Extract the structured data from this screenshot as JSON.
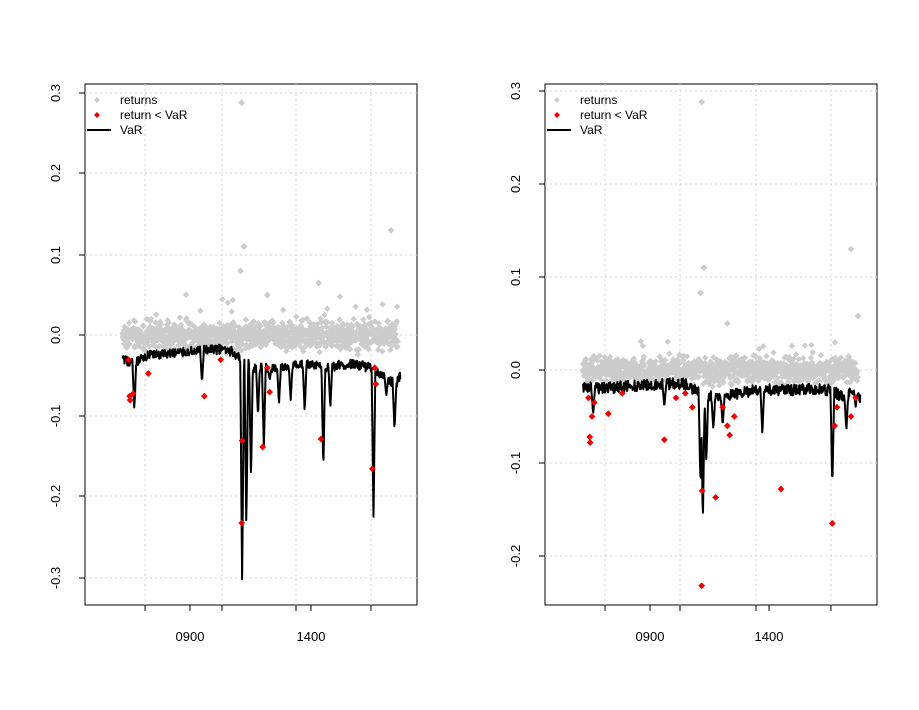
{
  "colors": {
    "returns": "#cccccc",
    "exceed": "#ee0000",
    "var_line": "#000000",
    "grid": "#d3d3d3",
    "axis": "#000000"
  },
  "chart_data": [
    {
      "type": "scatter",
      "title": "",
      "xlabel": "",
      "ylabel": "",
      "grid": true,
      "legend_position": "top-left",
      "legend": [
        "returns",
        "return < VaR",
        "VaR"
      ],
      "x_ticks": [
        "0900",
        "1400"
      ],
      "y_ticks": [
        "-0.3",
        "-0.2",
        "-0.1",
        "0.0",
        "0.1",
        "0.2",
        "0.3"
      ],
      "ylim": [
        -0.335,
        0.305
      ],
      "series": [
        {
          "name": "returns",
          "kind": "points",
          "approx_n": 1000,
          "approx_range": [
            -0.04,
            0.06
          ],
          "outliers": [
            [
              1040,
              0.288
            ],
            [
              1050,
              0.11
            ],
            [
              1035,
              0.08
            ],
            [
              1370,
              0.065
            ],
            [
              1680,
              0.13
            ],
            [
              1150,
              0.05
            ]
          ]
        },
        {
          "name": "return < VaR",
          "kind": "points",
          "values": [
            [
              555,
              -0.03
            ],
            [
              560,
              -0.075
            ],
            [
              562,
              -0.08
            ],
            [
              575,
              -0.072
            ],
            [
              640,
              -0.047
            ],
            [
              880,
              -0.075
            ],
            [
              950,
              -0.03
            ],
            [
              1040,
              -0.232
            ],
            [
              1042,
              -0.13
            ],
            [
              1130,
              -0.138
            ],
            [
              1150,
              -0.04
            ],
            [
              1160,
              -0.07
            ],
            [
              1380,
              -0.128
            ],
            [
              1600,
              -0.165
            ],
            [
              1610,
              -0.04
            ],
            [
              1615,
              -0.06
            ]
          ]
        },
        {
          "name": "VaR",
          "kind": "line",
          "baseline": [
            [
              530,
              -0.03
            ],
            [
              580,
              -0.035
            ],
            [
              640,
              -0.025
            ],
            [
              800,
              -0.02
            ],
            [
              900,
              -0.018
            ],
            [
              960,
              -0.017
            ],
            [
              1000,
              -0.02
            ],
            [
              1020,
              -0.025
            ],
            [
              1100,
              -0.04
            ],
            [
              1200,
              -0.04
            ],
            [
              1300,
              -0.035
            ],
            [
              1400,
              -0.04
            ],
            [
              1500,
              -0.035
            ],
            [
              1600,
              -0.04
            ],
            [
              1700,
              -0.06
            ],
            [
              1720,
              -0.05
            ]
          ],
          "spikes": [
            [
              580,
              -0.092
            ],
            [
              870,
              -0.058
            ],
            [
              1042,
              -0.312
            ],
            [
              1060,
              -0.24
            ],
            [
              1080,
              -0.18
            ],
            [
              1110,
              -0.1
            ],
            [
              1135,
              -0.14
            ],
            [
              1160,
              -0.055
            ],
            [
              1200,
              -0.085
            ],
            [
              1250,
              -0.08
            ],
            [
              1310,
              -0.095
            ],
            [
              1390,
              -0.166
            ],
            [
              1420,
              -0.09
            ],
            [
              1605,
              -0.225
            ],
            [
              1660,
              -0.075
            ],
            [
              1695,
              -0.118
            ]
          ]
        }
      ]
    },
    {
      "type": "scatter",
      "title": "",
      "xlabel": "",
      "ylabel": "",
      "grid": true,
      "legend_position": "top-left",
      "legend": [
        "returns",
        "return < VaR",
        "VaR"
      ],
      "x_ticks": [
        "0900",
        "1400"
      ],
      "y_ticks": [
        "-0.2",
        "-0.1",
        "0.0",
        "0.1",
        "0.2",
        "0.3"
      ],
      "ylim": [
        -0.255,
        0.31
      ],
      "series": [
        {
          "name": "returns",
          "kind": "points",
          "approx_n": 1000,
          "approx_range": [
            -0.02,
            0.05
          ],
          "outliers": [
            [
              1040,
              0.288
            ],
            [
              1050,
              0.11
            ],
            [
              1035,
              0.083
            ],
            [
              1150,
              0.05
            ],
            [
              1680,
              0.13
            ],
            [
              1710,
              0.058
            ]
          ]
        },
        {
          "name": "return < VaR",
          "kind": "points",
          "values": [
            [
              555,
              -0.03
            ],
            [
              560,
              -0.072
            ],
            [
              562,
              -0.078
            ],
            [
              570,
              -0.05
            ],
            [
              580,
              -0.035
            ],
            [
              640,
              -0.047
            ],
            [
              700,
              -0.025
            ],
            [
              880,
              -0.075
            ],
            [
              930,
              -0.03
            ],
            [
              970,
              -0.025
            ],
            [
              1000,
              -0.04
            ],
            [
              1040,
              -0.232
            ],
            [
              1042,
              -0.13
            ],
            [
              1100,
              -0.137
            ],
            [
              1130,
              -0.04
            ],
            [
              1150,
              -0.06
            ],
            [
              1160,
              -0.07
            ],
            [
              1180,
              -0.05
            ],
            [
              1380,
              -0.128
            ],
            [
              1600,
              -0.165
            ],
            [
              1610,
              -0.06
            ],
            [
              1620,
              -0.04
            ],
            [
              1680,
              -0.05
            ],
            [
              1700,
              -0.03
            ]
          ]
        },
        {
          "name": "VaR",
          "kind": "line",
          "baseline": [
            [
              530,
              -0.018
            ],
            [
              600,
              -0.02
            ],
            [
              700,
              -0.018
            ],
            [
              800,
              -0.016
            ],
            [
              900,
              -0.015
            ],
            [
              960,
              -0.014
            ],
            [
              1000,
              -0.02
            ],
            [
              1030,
              -0.025
            ],
            [
              1100,
              -0.03
            ],
            [
              1200,
              -0.025
            ],
            [
              1300,
              -0.02
            ],
            [
              1400,
              -0.022
            ],
            [
              1500,
              -0.02
            ],
            [
              1600,
              -0.022
            ],
            [
              1650,
              -0.03
            ],
            [
              1700,
              -0.02
            ],
            [
              1720,
              -0.03
            ]
          ],
          "spikes": [
            [
              575,
              -0.048
            ],
            [
              880,
              -0.04
            ],
            [
              1035,
              -0.125
            ],
            [
              1045,
              -0.165
            ],
            [
              1060,
              -0.1
            ],
            [
              1090,
              -0.065
            ],
            [
              1130,
              -0.06
            ],
            [
              1300,
              -0.07
            ],
            [
              1600,
              -0.127
            ],
            [
              1660,
              -0.065
            ],
            [
              1700,
              -0.04
            ]
          ]
        }
      ]
    }
  ]
}
